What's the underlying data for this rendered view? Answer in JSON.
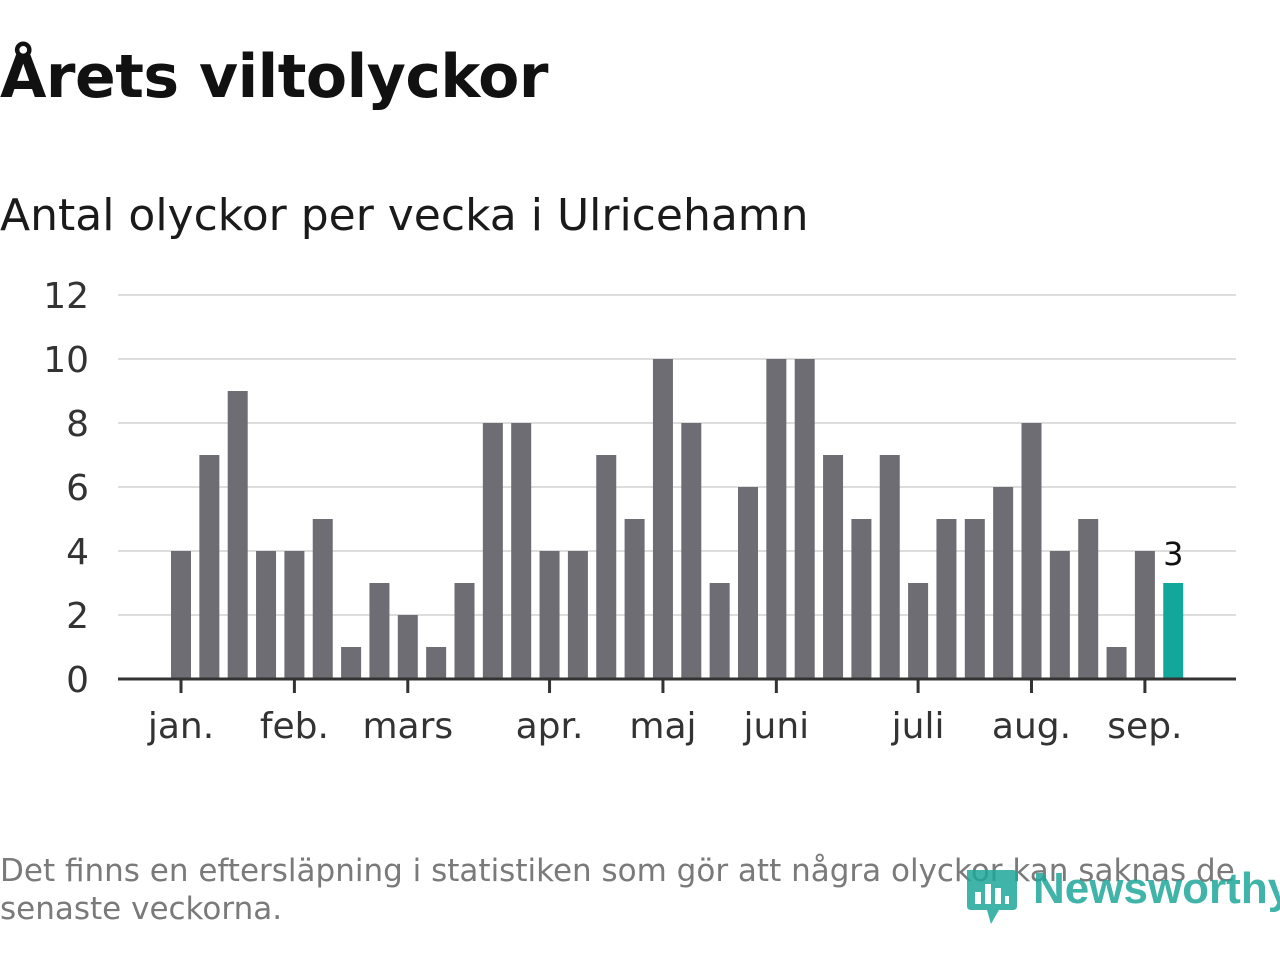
{
  "chart_data": {
    "type": "bar",
    "title": "Årets viltolyckor",
    "subtitle": "Antal olyckor per vecka i Ulricehamn",
    "values": [
      4,
      7,
      9,
      4,
      4,
      5,
      1,
      3,
      2,
      1,
      3,
      8,
      8,
      4,
      4,
      7,
      5,
      10,
      8,
      3,
      6,
      10,
      10,
      7,
      5,
      7,
      3,
      5,
      5,
      6,
      8,
      4,
      5,
      1,
      4,
      3
    ],
    "y_ticks": [
      0,
      2,
      4,
      6,
      8,
      10,
      12
    ],
    "ylim": [
      0,
      12
    ],
    "month_labels": [
      {
        "label": "jan.",
        "week": 1
      },
      {
        "label": "feb.",
        "week": 5
      },
      {
        "label": "mars",
        "week": 9
      },
      {
        "label": "apr.",
        "week": 14
      },
      {
        "label": "maj",
        "week": 18
      },
      {
        "label": "juni",
        "week": 22
      },
      {
        "label": "juli",
        "week": 27
      },
      {
        "label": "aug.",
        "week": 31
      },
      {
        "label": "sep.",
        "week": 35
      }
    ],
    "highlight_index": 35,
    "highlight_label": "3",
    "grid": true,
    "colors": {
      "bar": "#6e6d73",
      "highlight": "#13a69a",
      "grid": "#dddddd",
      "axis": "#333333"
    }
  },
  "footnote": "Det finns en eftersläpning i statistiken som gör att några olyckor kan saknas de senaste veckorna.",
  "brand": {
    "name": "Newsworthy",
    "icon": "newsworthy-logo-icon",
    "color": "#1fa79a"
  }
}
